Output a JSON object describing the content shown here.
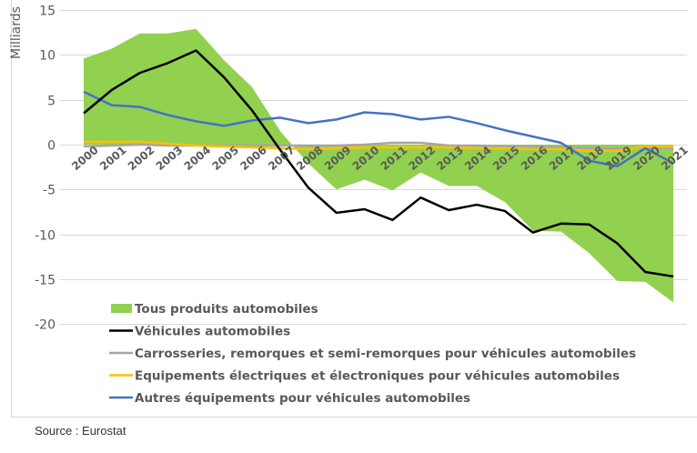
{
  "chart_data": {
    "type": "line",
    "title": "",
    "xlabel": "",
    "ylabel": "Milliards",
    "ylim": [
      -20,
      15
    ],
    "yticks": [
      15,
      10,
      5,
      0,
      -5,
      -10,
      -15,
      -20
    ],
    "grid": true,
    "legend_position": "bottom-left",
    "categories": [
      "2000",
      "2001",
      "2002",
      "2003",
      "2004",
      "2005",
      "2006",
      "2007",
      "2008",
      "2009",
      "2010",
      "2011",
      "2012",
      "2013",
      "2014",
      "2015",
      "2016",
      "2017",
      "2018",
      "2019",
      "2020",
      "2021"
    ],
    "series": [
      {
        "name": "Tous produits automobiles",
        "kind": "area",
        "color": "#92d050",
        "values": [
          9.6,
          10.7,
          12.4,
          12.4,
          12.9,
          9.4,
          6.4,
          1.5,
          -2.1,
          -5.0,
          -3.9,
          -5.1,
          -3.1,
          -4.6,
          -4.6,
          -6.4,
          -9.6,
          -9.7,
          -12.1,
          -15.2,
          -15.3,
          -17.6
        ]
      },
      {
        "name": "Véhicules automobiles",
        "kind": "line",
        "color": "#000000",
        "values": [
          3.5,
          6.1,
          8.0,
          9.1,
          10.5,
          7.5,
          3.8,
          -0.6,
          -4.8,
          -7.6,
          -7.2,
          -8.4,
          -5.9,
          -7.3,
          -6.7,
          -7.4,
          -9.8,
          -8.8,
          -8.9,
          -11.0,
          -14.2,
          -14.7
        ]
      },
      {
        "name": "Carrosseries, remorques et semi-remorques pour véhicules automobiles",
        "kind": "line",
        "color": "#a5a5a5",
        "values": [
          -0.2,
          -0.1,
          0.0,
          -0.1,
          -0.1,
          -0.1,
          -0.1,
          -0.1,
          -0.1,
          -0.1,
          0.0,
          0.2,
          0.2,
          -0.1,
          -0.1,
          -0.2,
          -0.2,
          -0.3,
          -0.4,
          -0.4,
          -0.4,
          -0.4
        ]
      },
      {
        "name": "Equipements électriques et électroniques pour véhicules automobiles",
        "kind": "line",
        "color": "#ffc000",
        "values": [
          0.3,
          0.3,
          0.3,
          0.1,
          -0.1,
          -0.2,
          -0.3,
          -0.4,
          -0.5,
          -0.4,
          -0.3,
          -0.3,
          -0.3,
          -0.3,
          -0.4,
          -0.4,
          -0.5,
          -0.5,
          -0.7,
          -0.7,
          -0.2,
          -0.2
        ]
      },
      {
        "name": "Autres équipements pour véhicules automobiles",
        "kind": "line",
        "color": "#4472c4",
        "values": [
          5.9,
          4.4,
          4.2,
          3.3,
          2.6,
          2.1,
          2.7,
          3.0,
          2.4,
          2.8,
          3.6,
          3.4,
          2.8,
          3.1,
          2.4,
          1.6,
          0.9,
          0.2,
          -1.8,
          -2.4,
          -0.4,
          -2.1
        ]
      }
    ]
  },
  "source": "Source : Eurostat"
}
